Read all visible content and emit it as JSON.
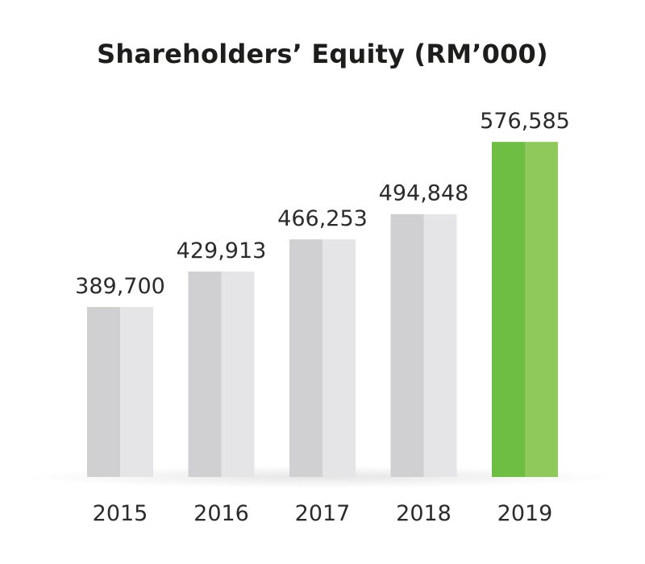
{
  "chart_data": {
    "type": "bar",
    "title": "Shareholders’ Equity (RM’000)",
    "categories": [
      "2015",
      "2016",
      "2017",
      "2018",
      "2019"
    ],
    "values": [
      389700,
      429913,
      466253,
      494848,
      576585
    ],
    "value_labels": [
      "389,700",
      "429,913",
      "466,253",
      "494,848",
      "576,585"
    ],
    "xlabel": "",
    "ylabel": "",
    "grid": false,
    "legend": "none",
    "highlight_category": "2019",
    "colors": {
      "bar_dark": "#d0d0d2",
      "bar_light": "#e5e5e7",
      "highlight_dark": "#6fbe44",
      "highlight_light": "#8fc95b",
      "text": "#2b2b2b"
    }
  }
}
